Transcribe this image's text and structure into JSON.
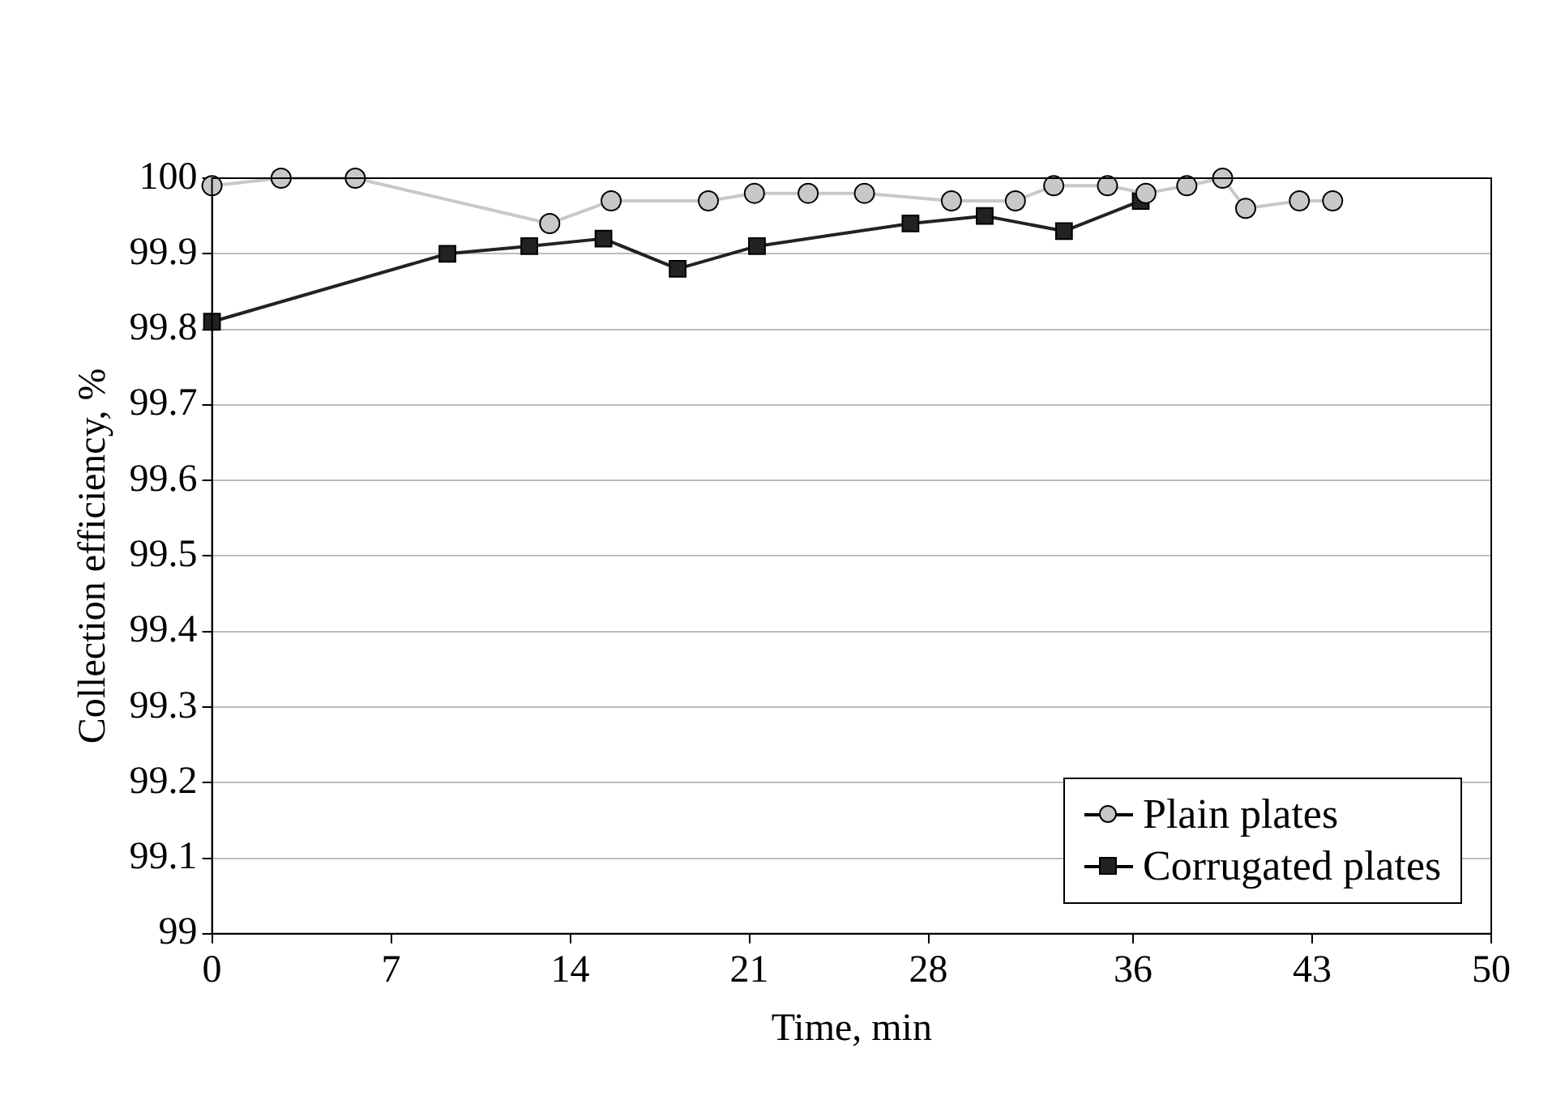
{
  "chart_data": {
    "type": "line",
    "xlabel": "Time, min",
    "ylabel": "Collection efficiency, %",
    "xlim": [
      0,
      50
    ],
    "xticks": [
      0,
      7,
      14,
      21,
      28,
      36,
      43,
      50
    ],
    "ylim": [
      99,
      100
    ],
    "yticks": [
      99,
      99.1,
      99.2,
      99.3,
      99.4,
      99.5,
      99.6,
      99.7,
      99.8,
      99.9,
      100
    ],
    "grid": "y",
    "legend": "bottom right",
    "line_style": "solid",
    "series": [
      {
        "name": "Plain plates",
        "color": "#c8c8c8",
        "marker": "circle",
        "x": [
          0,
          2.7,
          5.6,
          13.2,
          15.6,
          19.4,
          21.2,
          23.3,
          25.5,
          28.9,
          31.4,
          32.9,
          35.0,
          36.5,
          38.1,
          39.5,
          40.4,
          42.5,
          43.8
        ],
        "values": [
          99.99,
          100,
          100,
          99.94,
          99.97,
          99.97,
          99.98,
          99.98,
          99.98,
          99.97,
          99.97,
          99.99,
          99.99,
          99.98,
          99.99,
          100,
          99.96,
          99.97,
          99.97
        ]
      },
      {
        "name": "Corrugated plates",
        "color": "#222222",
        "marker": "square",
        "x": [
          0,
          9.2,
          12.4,
          15.3,
          18.2,
          21.3,
          27.3,
          30.2,
          33.3,
          36.3
        ],
        "values": [
          99.81,
          99.9,
          99.91,
          99.92,
          99.88,
          99.91,
          99.94,
          99.95,
          99.93,
          99.97
        ]
      }
    ]
  }
}
